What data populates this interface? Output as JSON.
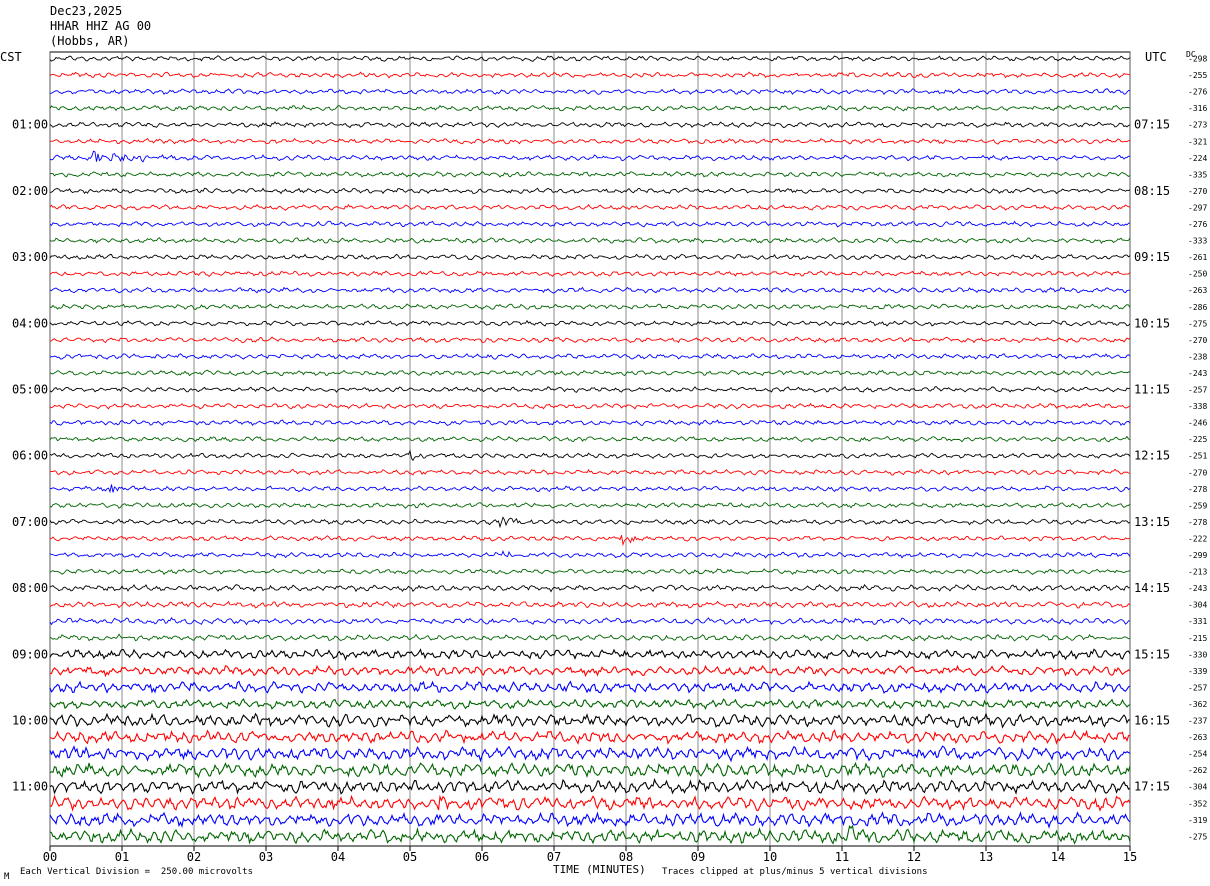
{
  "header": {
    "date": "Dec23,2025",
    "station": "HHAR HHZ AG 00",
    "location": "(Hobbs, AR)"
  },
  "left_tz": "CST",
  "right_tz": "UTC",
  "dc_label": "DC",
  "footer": {
    "scale_text": "Each Vertical Division =  250.00 microvolts",
    "xaxis_title": "TIME (MINUTES)",
    "clip_text": "Traces clipped at plus/minus 5 vertical divisions",
    "corner_mark": "M"
  },
  "colors": {
    "black": "#000000",
    "red": "#ff0000",
    "blue": "#0000ff",
    "green": "#006400",
    "grid": "#707070"
  },
  "chart_data": {
    "type": "line",
    "subtype": "helicorder",
    "xlabel": "TIME (MINUTES)",
    "xlim": [
      0,
      15
    ],
    "x_ticks": [
      "00",
      "01",
      "02",
      "03",
      "04",
      "05",
      "06",
      "07",
      "08",
      "09",
      "10",
      "11",
      "12",
      "13",
      "14",
      "15"
    ],
    "trace_interval_minutes": 15,
    "trace_color_cycle": [
      "black",
      "red",
      "blue",
      "green"
    ],
    "left_hour_labels": [
      "01:00",
      "02:00",
      "03:00",
      "04:00",
      "05:00",
      "06:00",
      "07:00",
      "08:00",
      "09:00",
      "10:00",
      "11:00"
    ],
    "right_hour_labels": [
      "07:15",
      "08:15",
      "09:15",
      "10:15",
      "11:15",
      "12:15",
      "13:15",
      "14:15",
      "15:15",
      "16:15",
      "17:15"
    ],
    "dc_offsets": [
      -298,
      -255,
      -276,
      -316,
      -273,
      -321,
      -224,
      -335,
      -270,
      -297,
      -276,
      -333,
      -261,
      -250,
      -263,
      -286,
      -275,
      -270,
      -238,
      -243,
      -257,
      -338,
      -246,
      -225,
      -251,
      -270,
      -278,
      -259,
      -278,
      -222,
      -299,
      -213,
      -243,
      -304,
      -331,
      -215,
      -330,
      -339,
      -257,
      -362,
      -237,
      -263,
      -254,
      -262,
      -304,
      -352,
      -319,
      -275
    ],
    "trace_noise_amplitude": [
      1,
      1,
      1,
      1,
      1,
      1,
      1,
      1,
      1,
      1,
      1,
      1,
      1,
      1,
      1,
      1,
      1,
      1,
      1,
      1,
      1,
      1,
      1,
      1,
      1,
      1,
      1,
      1,
      1,
      1,
      1,
      1,
      1.2,
      1.2,
      1.2,
      1.2,
      1.8,
      1.8,
      2.2,
      1.8,
      2.4,
      2.4,
      2.6,
      2.6,
      2.6,
      2.6,
      2.6,
      2.6
    ],
    "events": [
      {
        "trace": 6,
        "minute": 0.6,
        "amplitude": 7,
        "duration_minutes": 0.5
      },
      {
        "trace": 24,
        "minute": 5.0,
        "amplitude": 5,
        "duration_minutes": 0.1
      },
      {
        "trace": 26,
        "minute": 0.85,
        "amplitude": 5,
        "duration_minutes": 0.1
      },
      {
        "trace": 28,
        "minute": 6.25,
        "amplitude": 7,
        "duration_minutes": 0.2
      },
      {
        "trace": 29,
        "minute": 7.95,
        "amplitude": 8,
        "duration_minutes": 0.15
      },
      {
        "trace": 30,
        "minute": 6.3,
        "amplitude": 4,
        "duration_minutes": 0.08
      },
      {
        "trace": 45,
        "minute": 5.4,
        "amplitude": 6,
        "duration_minutes": 0.2
      },
      {
        "trace": 47,
        "minute": 11.1,
        "amplitude": 6,
        "duration_minutes": 0.3
      }
    ]
  }
}
